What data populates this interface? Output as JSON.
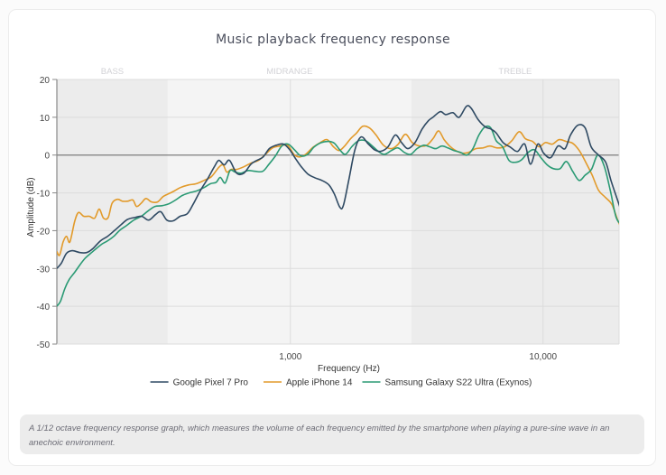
{
  "page": {
    "caption": "A 1/12 octave frequency response graph, which measures the volume of each frequency emitted by the smartphone when playing a pure-sine wave in an anechoic environment."
  },
  "chart_data": {
    "type": "line",
    "title": "Music playback frequency response",
    "xlabel": "Frequency (Hz)",
    "ylabel": "Amplitude (dB)",
    "xscale": "log",
    "xlim": [
      119,
      20000
    ],
    "ylim": [
      -50,
      20
    ],
    "yticks": [
      20,
      10,
      0,
      -10,
      -20,
      -30,
      -40,
      -50
    ],
    "ytick_labels": [
      "20",
      "10",
      "0",
      "-10",
      "-20",
      "-30",
      "-40",
      "-50"
    ],
    "xticks": [
      1000,
      10000
    ],
    "xtick_labels": [
      "1,000",
      "10,000"
    ],
    "grid": true,
    "legend_position": "bottom",
    "bands": [
      {
        "label": "BASS",
        "from": 119,
        "to": 327,
        "shade": "#ececec"
      },
      {
        "label": "MIDRANGE",
        "from": 327,
        "to": 3010,
        "shade": "#f4f4f4"
      },
      {
        "label": "TREBLE",
        "from": 3010,
        "to": 20000,
        "shade": "#ececec"
      }
    ],
    "series": [
      {
        "name": "Google Pixel 7 Pro",
        "color": "#2f4a63",
        "points": [
          [
            119,
            -30
          ],
          [
            124,
            -28.6
          ],
          [
            130,
            -26
          ],
          [
            137,
            -25.3
          ],
          [
            147,
            -25.8
          ],
          [
            156,
            -25.8
          ],
          [
            165,
            -24.8
          ],
          [
            177,
            -22.7
          ],
          [
            189,
            -21.5
          ],
          [
            201,
            -20
          ],
          [
            214,
            -18.4
          ],
          [
            227,
            -17
          ],
          [
            243,
            -16.5
          ],
          [
            258,
            -16.2
          ],
          [
            275,
            -17.2
          ],
          [
            292,
            -15.8
          ],
          [
            307,
            -15
          ],
          [
            324,
            -17.2
          ],
          [
            344,
            -17.4
          ],
          [
            366,
            -16.2
          ],
          [
            391,
            -15.5
          ],
          [
            413,
            -12.9
          ],
          [
            441,
            -9.3
          ],
          [
            471,
            -6.2
          ],
          [
            500,
            -3.1
          ],
          [
            521,
            -1.4
          ],
          [
            547,
            -2.6
          ],
          [
            574,
            -1.4
          ],
          [
            613,
            -4.8
          ],
          [
            654,
            -4.8
          ],
          [
            698,
            -2.4
          ],
          [
            737,
            -1.4
          ],
          [
            780,
            -0.5
          ],
          [
            825,
            1.7
          ],
          [
            880,
            2.6
          ],
          [
            940,
            2.9
          ],
          [
            994,
            1.4
          ],
          [
            1054,
            -1.2
          ],
          [
            1105,
            -3.1
          ],
          [
            1171,
            -5
          ],
          [
            1249,
            -6
          ],
          [
            1333,
            -6.7
          ],
          [
            1421,
            -7.9
          ],
          [
            1493,
            -10.3
          ],
          [
            1569,
            -13.8
          ],
          [
            1620,
            -13.4
          ],
          [
            1702,
            -6.7
          ],
          [
            1800,
            1.4
          ],
          [
            1906,
            4.8
          ],
          [
            2035,
            2.9
          ],
          [
            2155,
            1.4
          ],
          [
            2282,
            1
          ],
          [
            2436,
            2.2
          ],
          [
            2601,
            5.3
          ],
          [
            2755,
            3.3
          ],
          [
            2916,
            1.7
          ],
          [
            3113,
            3.3
          ],
          [
            3324,
            6.9
          ],
          [
            3521,
            9.1
          ],
          [
            3666,
            10
          ],
          [
            3922,
            11.5
          ],
          [
            4117,
            10.7
          ],
          [
            4398,
            11.2
          ],
          [
            4657,
            10
          ],
          [
            4974,
            12.9
          ],
          [
            5194,
            12.4
          ],
          [
            5546,
            9.3
          ],
          [
            5922,
            7.4
          ],
          [
            6210,
            6.9
          ],
          [
            6512,
            5.9
          ],
          [
            6953,
            3.3
          ],
          [
            7424,
            2.1
          ],
          [
            7927,
            0.95
          ],
          [
            8464,
            2.9
          ],
          [
            8923,
            -2.4
          ],
          [
            9529,
            2.9
          ],
          [
            10055,
            0.5
          ],
          [
            10729,
            -0.7
          ],
          [
            11462,
            2.4
          ],
          [
            12220,
            1.7
          ],
          [
            12845,
            5.3
          ],
          [
            13744,
            7.9
          ],
          [
            14677,
            7.2
          ],
          [
            15522,
            2.1
          ],
          [
            16584,
            0
          ],
          [
            17714,
            -1.9
          ],
          [
            18573,
            -6.7
          ],
          [
            19885,
            -12.6
          ],
          [
            21000,
            -17.4
          ]
        ]
      },
      {
        "name": "Apple iPhone 14",
        "color": "#e29a2a",
        "points": [
          [
            119,
            -25.5
          ],
          [
            122,
            -26.5
          ],
          [
            126,
            -23
          ],
          [
            130,
            -21.5
          ],
          [
            134,
            -23
          ],
          [
            140,
            -17.5
          ],
          [
            145,
            -15.2
          ],
          [
            152,
            -16.2
          ],
          [
            160,
            -16.2
          ],
          [
            168,
            -16.7
          ],
          [
            175,
            -14.3
          ],
          [
            182,
            -16.7
          ],
          [
            190,
            -16.5
          ],
          [
            197,
            -12.7
          ],
          [
            207,
            -11.7
          ],
          [
            216,
            -12.2
          ],
          [
            227,
            -12.2
          ],
          [
            238,
            -11.9
          ],
          [
            246,
            -13.6
          ],
          [
            257,
            -12.7
          ],
          [
            268,
            -11.5
          ],
          [
            282,
            -12.4
          ],
          [
            298,
            -12.4
          ],
          [
            313,
            -11
          ],
          [
            328,
            -10.3
          ],
          [
            347,
            -9.5
          ],
          [
            367,
            -8.6
          ],
          [
            395,
            -7.9
          ],
          [
            423,
            -7.6
          ],
          [
            455,
            -6.7
          ],
          [
            487,
            -5.7
          ],
          [
            520,
            -3.3
          ],
          [
            541,
            -2.6
          ],
          [
            560,
            -4.5
          ],
          [
            582,
            -3.8
          ],
          [
            613,
            -3.8
          ],
          [
            654,
            -3.1
          ],
          [
            700,
            -2.1
          ],
          [
            748,
            -1.4
          ],
          [
            797,
            0.2
          ],
          [
            850,
            1.9
          ],
          [
            910,
            2.4
          ],
          [
            975,
            2.6
          ],
          [
            1032,
            0.2
          ],
          [
            1085,
            -0.5
          ],
          [
            1149,
            0.2
          ],
          [
            1231,
            2.1
          ],
          [
            1313,
            3.3
          ],
          [
            1398,
            4.1
          ],
          [
            1480,
            2.2
          ],
          [
            1558,
            1.2
          ],
          [
            1640,
            2.4
          ],
          [
            1729,
            4.3
          ],
          [
            1826,
            5.8
          ],
          [
            1931,
            7.6
          ],
          [
            2054,
            7.2
          ],
          [
            2183,
            5.3
          ],
          [
            2335,
            2.6
          ],
          [
            2513,
            1.7
          ],
          [
            2672,
            2.9
          ],
          [
            2851,
            5.5
          ],
          [
            3037,
            3.3
          ],
          [
            3246,
            2.4
          ],
          [
            3467,
            2.6
          ],
          [
            3682,
            4.5
          ],
          [
            3862,
            6.4
          ],
          [
            4060,
            4.1
          ],
          [
            4267,
            2.4
          ],
          [
            4510,
            1.2
          ],
          [
            4788,
            0.5
          ],
          [
            5073,
            0.7
          ],
          [
            5418,
            1.7
          ],
          [
            5782,
            1.9
          ],
          [
            6158,
            2.4
          ],
          [
            6582,
            1.9
          ],
          [
            7051,
            2.2
          ],
          [
            7527,
            3.8
          ],
          [
            8047,
            6.2
          ],
          [
            8525,
            4.3
          ],
          [
            9089,
            3.6
          ],
          [
            9643,
            2.2
          ],
          [
            10223,
            3.3
          ],
          [
            10884,
            2.9
          ],
          [
            11592,
            4.1
          ],
          [
            12347,
            3.6
          ],
          [
            13105,
            3.1
          ],
          [
            13911,
            1.2
          ],
          [
            14762,
            -1.9
          ],
          [
            15646,
            -5.3
          ],
          [
            16585,
            -9.3
          ],
          [
            17655,
            -11.2
          ],
          [
            18740,
            -13.1
          ],
          [
            19885,
            -17.7
          ],
          [
            21000,
            -20.5
          ]
        ]
      },
      {
        "name": "Samsung Galaxy S22 Ultra (Exynos)",
        "color": "#2a9a74",
        "points": [
          [
            119,
            -40
          ],
          [
            123,
            -38.7
          ],
          [
            128,
            -35.3
          ],
          [
            133,
            -33
          ],
          [
            140,
            -31
          ],
          [
            147,
            -29
          ],
          [
            154,
            -27.3
          ],
          [
            162,
            -26
          ],
          [
            170,
            -24.8
          ],
          [
            179,
            -23.6
          ],
          [
            189,
            -22.7
          ],
          [
            200,
            -21.5
          ],
          [
            212,
            -19.8
          ],
          [
            225,
            -18.6
          ],
          [
            240,
            -17.2
          ],
          [
            257,
            -16.2
          ],
          [
            273,
            -14.8
          ],
          [
            291,
            -13.6
          ],
          [
            310,
            -13.4
          ],
          [
            330,
            -12.9
          ],
          [
            351,
            -11.9
          ],
          [
            373,
            -10.7
          ],
          [
            397,
            -10
          ],
          [
            425,
            -9.5
          ],
          [
            455,
            -8.6
          ],
          [
            482,
            -7.6
          ],
          [
            508,
            -7.2
          ],
          [
            528,
            -5.9
          ],
          [
            552,
            -7.4
          ],
          [
            577,
            -4.1
          ],
          [
            605,
            -4.5
          ],
          [
            638,
            -4.8
          ],
          [
            678,
            -4.1
          ],
          [
            726,
            -4.3
          ],
          [
            777,
            -4.3
          ],
          [
            823,
            -2.4
          ],
          [
            873,
            -0.2
          ],
          [
            925,
            2.4
          ],
          [
            980,
            2.9
          ],
          [
            1038,
            1.4
          ],
          [
            1099,
            -0.2
          ],
          [
            1171,
            0.2
          ],
          [
            1240,
            2.1
          ],
          [
            1326,
            3.3
          ],
          [
            1420,
            3.6
          ],
          [
            1494,
            3.1
          ],
          [
            1568,
            1.4
          ],
          [
            1651,
            0.2
          ],
          [
            1750,
            2.2
          ],
          [
            1860,
            3.8
          ],
          [
            1982,
            3.8
          ],
          [
            2111,
            2.4
          ],
          [
            2231,
            0.95
          ],
          [
            2359,
            0.2
          ],
          [
            2511,
            1.2
          ],
          [
            2665,
            1.9
          ],
          [
            2826,
            0.7
          ],
          [
            2993,
            0.2
          ],
          [
            3170,
            1.7
          ],
          [
            3372,
            2.6
          ],
          [
            3554,
            2.2
          ],
          [
            3753,
            1.7
          ],
          [
            3979,
            2.4
          ],
          [
            4198,
            1.9
          ],
          [
            4443,
            1.2
          ],
          [
            4714,
            0.7
          ],
          [
            4999,
            0
          ],
          [
            5277,
            1.7
          ],
          [
            5574,
            5.3
          ],
          [
            5882,
            7.4
          ],
          [
            6210,
            7.2
          ],
          [
            6526,
            3.8
          ],
          [
            6915,
            2.2
          ],
          [
            7333,
            -1.4
          ],
          [
            7785,
            -1.9
          ],
          [
            8240,
            -1.2
          ],
          [
            8728,
            0.7
          ],
          [
            9251,
            1.4
          ],
          [
            9812,
            -0.7
          ],
          [
            10392,
            -2.6
          ],
          [
            11010,
            -3.6
          ],
          [
            11678,
            -3.6
          ],
          [
            12376,
            -1.7
          ],
          [
            13104,
            -4.3
          ],
          [
            13890,
            -6.7
          ],
          [
            14695,
            -5.3
          ],
          [
            15551,
            -3.8
          ],
          [
            16479,
            0
          ],
          [
            17467,
            -2.9
          ],
          [
            18457,
            -9.3
          ],
          [
            19486,
            -16.5
          ],
          [
            20600,
            -17.9
          ],
          [
            21000,
            -13.1
          ]
        ]
      }
    ]
  }
}
